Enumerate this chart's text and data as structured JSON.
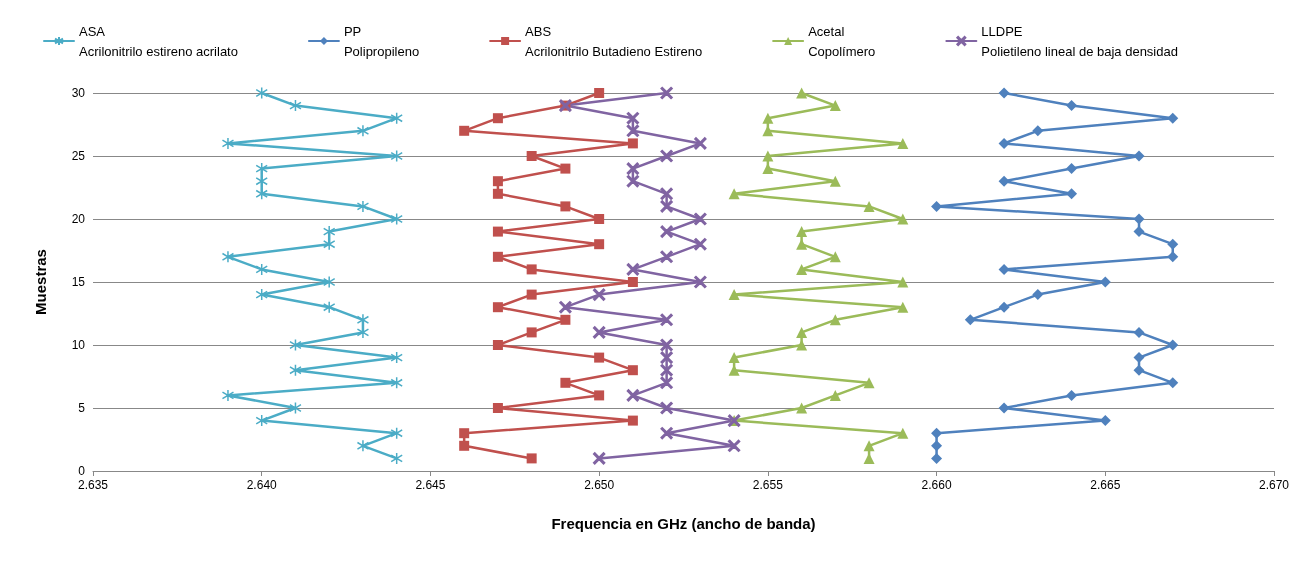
{
  "chart_data": {
    "type": "line",
    "xlabel": "Frequencia en GHz (ancho de banda)",
    "ylabel": "Muestras",
    "xlim": [
      2.635,
      2.67
    ],
    "xticks": [
      {
        "value": 2.635,
        "label": "2.635"
      },
      {
        "value": 2.64,
        "label": "2.640"
      },
      {
        "value": 2.645,
        "label": "2.645"
      },
      {
        "value": 2.65,
        "label": "2.650"
      },
      {
        "value": 2.655,
        "label": "2.655"
      },
      {
        "value": 2.66,
        "label": "2.660"
      },
      {
        "value": 2.665,
        "label": "2.665"
      },
      {
        "value": 2.67,
        "label": "2.670"
      }
    ],
    "ylim": [
      0,
      30
    ],
    "yticks": [
      0,
      5,
      10,
      15,
      20,
      25,
      30
    ],
    "grid": "y",
    "legend": "top",
    "line_style": "solid",
    "series": [
      {
        "name": "ASA\nAcrilonitrilo estireno acrilato",
        "color": "#4bacc6",
        "marker": "star",
        "x": [
          2.644,
          2.643,
          2.644,
          2.64,
          2.641,
          2.639,
          2.644,
          2.641,
          2.644,
          2.641,
          2.643,
          2.643,
          2.642,
          2.64,
          2.642,
          2.64,
          2.639,
          2.642,
          2.642,
          2.644,
          2.643,
          2.64,
          2.64,
          2.64,
          2.644,
          2.639,
          2.643,
          2.644,
          2.641,
          2.64
        ],
        "values": [
          1,
          2,
          3,
          4,
          5,
          6,
          7,
          8,
          9,
          10,
          11,
          12,
          13,
          14,
          15,
          16,
          17,
          18,
          19,
          20,
          21,
          22,
          23,
          24,
          25,
          26,
          27,
          28,
          29,
          30
        ]
      },
      {
        "name": "PP\nPolipropileno",
        "color": "#4f81bd",
        "marker": "diamond",
        "x": [
          2.66,
          2.66,
          2.66,
          2.665,
          2.662,
          2.664,
          2.667,
          2.666,
          2.666,
          2.667,
          2.666,
          2.661,
          2.662,
          2.663,
          2.665,
          2.662,
          2.667,
          2.667,
          2.666,
          2.666,
          2.66,
          2.664,
          2.662,
          2.664,
          2.666,
          2.662,
          2.663,
          2.667,
          2.664,
          2.662
        ],
        "values": [
          1,
          2,
          3,
          4,
          5,
          6,
          7,
          8,
          9,
          10,
          11,
          12,
          13,
          14,
          15,
          16,
          17,
          18,
          19,
          20,
          21,
          22,
          23,
          24,
          25,
          26,
          27,
          28,
          29,
          30
        ]
      },
      {
        "name": "ABS\nAcrilonitrilo Butadieno Estireno",
        "color": "#c0504d",
        "marker": "square",
        "x": [
          2.648,
          2.646,
          2.646,
          2.651,
          2.647,
          2.65,
          2.649,
          2.651,
          2.65,
          2.647,
          2.648,
          2.649,
          2.647,
          2.648,
          2.651,
          2.648,
          2.647,
          2.65,
          2.647,
          2.65,
          2.649,
          2.647,
          2.647,
          2.649,
          2.648,
          2.651,
          2.646,
          2.647,
          2.649,
          2.65
        ],
        "values": [
          1,
          2,
          3,
          4,
          5,
          6,
          7,
          8,
          9,
          10,
          11,
          12,
          13,
          14,
          15,
          16,
          17,
          18,
          19,
          20,
          21,
          22,
          23,
          24,
          25,
          26,
          27,
          28,
          29,
          30
        ]
      },
      {
        "name": "Acetal\nCopolímero",
        "color": "#9bbb59",
        "marker": "triangle",
        "x": [
          2.658,
          2.658,
          2.659,
          2.654,
          2.656,
          2.657,
          2.658,
          2.654,
          2.654,
          2.656,
          2.656,
          2.657,
          2.659,
          2.654,
          2.659,
          2.656,
          2.657,
          2.656,
          2.656,
          2.659,
          2.658,
          2.654,
          2.657,
          2.655,
          2.655,
          2.659,
          2.655,
          2.655,
          2.657,
          2.656
        ],
        "values": [
          1,
          2,
          3,
          4,
          5,
          6,
          7,
          8,
          9,
          10,
          11,
          12,
          13,
          14,
          15,
          16,
          17,
          18,
          19,
          20,
          21,
          22,
          23,
          24,
          25,
          26,
          27,
          28,
          29,
          30
        ]
      },
      {
        "name": "LLDPE\nPolietileno lineal de baja densidad",
        "color": "#8064a2",
        "marker": "cross",
        "x": [
          2.65,
          2.654,
          2.652,
          2.654,
          2.652,
          2.651,
          2.652,
          2.652,
          2.652,
          2.652,
          2.65,
          2.652,
          2.649,
          2.65,
          2.653,
          2.651,
          2.652,
          2.653,
          2.652,
          2.653,
          2.652,
          2.652,
          2.651,
          2.651,
          2.652,
          2.653,
          2.651,
          2.651,
          2.649,
          2.652
        ],
        "values": [
          1,
          2,
          3,
          4,
          5,
          6,
          7,
          8,
          9,
          10,
          11,
          12,
          13,
          14,
          15,
          16,
          17,
          18,
          19,
          20,
          21,
          22,
          23,
          24,
          25,
          26,
          27,
          28,
          29,
          30
        ]
      }
    ]
  }
}
